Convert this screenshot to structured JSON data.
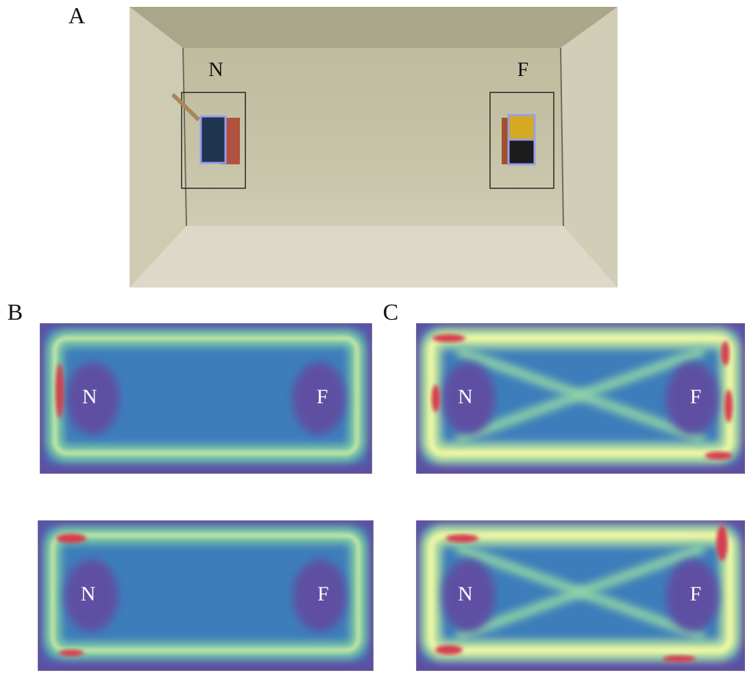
{
  "panel_a": {
    "label": "A",
    "near": "N",
    "far": "F"
  },
  "panel_b": {
    "label": "B",
    "maps": [
      {
        "near": "N",
        "far": "F"
      },
      {
        "near": "N",
        "far": "F"
      }
    ]
  },
  "panel_c": {
    "label": "C",
    "maps": [
      {
        "near": "N",
        "far": "F"
      },
      {
        "near": "N",
        "far": "F"
      }
    ]
  }
}
